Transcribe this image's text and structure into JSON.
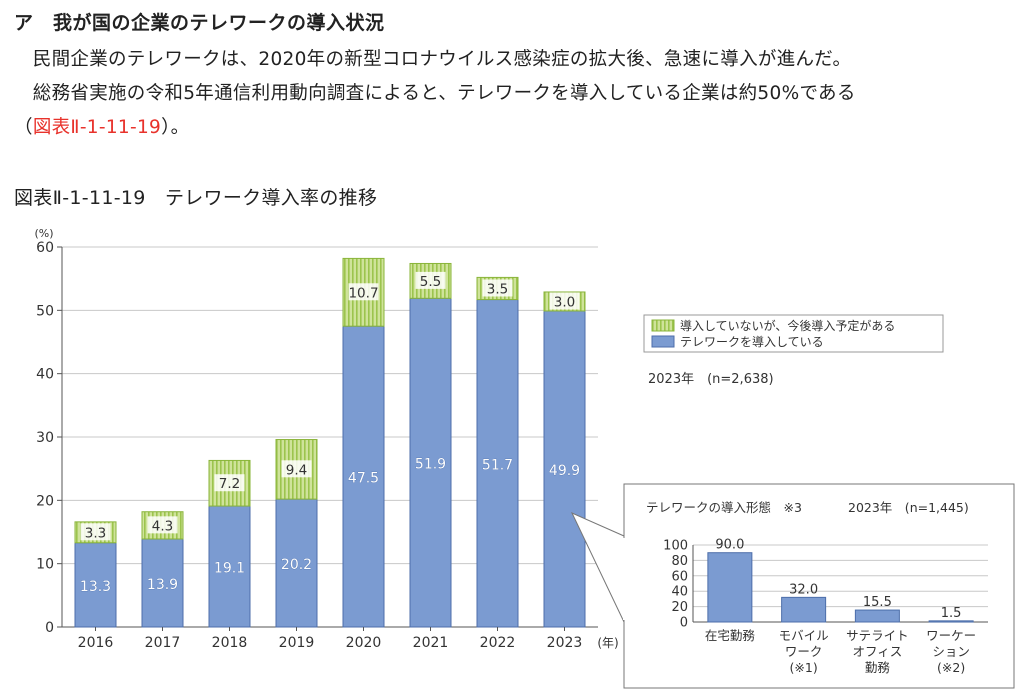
{
  "section": {
    "heading": "ア　我が国の企業のテレワークの導入状況"
  },
  "paragraphs": [
    "　民間企業のテレワークは、2020年の新型コロナウイルス感染症の拡大後、急速に導入が進んだ。",
    "　総務省実施の令和5年通信利用動向調査によると、テレワークを導入している企業は約50%である"
  ],
  "ref_line": {
    "open": "（",
    "ref": "図表Ⅱ-1-11-19",
    "close": "）。"
  },
  "figure": {
    "title": "図表Ⅱ-1-11-19　テレワーク導入率の推移"
  },
  "colors": {
    "blue": "#7b9bd1",
    "blue_edge": "#4c6eaa",
    "green": "#cfe39a",
    "green_stripe": "#9cc44d",
    "grid": "#c8c8c8",
    "axis": "#555555",
    "ref_red": "#e8322b"
  },
  "chart_data": [
    {
      "type": "bar",
      "stacked": true,
      "categories": [
        "2016",
        "2017",
        "2018",
        "2019",
        "2020",
        "2021",
        "2022",
        "2023"
      ],
      "x_unit": "(年)",
      "y_unit": "(%)",
      "ylim": [
        0,
        60
      ],
      "yticks": [
        0,
        10,
        20,
        30,
        40,
        50,
        60
      ],
      "grid": true,
      "series": [
        {
          "name": "テレワークを導入している",
          "values": [
            13.3,
            13.9,
            19.1,
            20.2,
            47.5,
            51.9,
            51.7,
            49.9
          ]
        },
        {
          "name": "導入していないが、今後導入予定がある",
          "values": [
            3.3,
            4.3,
            7.2,
            9.4,
            10.7,
            5.5,
            3.5,
            3.0
          ]
        }
      ],
      "legend": {
        "position": "right",
        "note": "2023年　(n=2,638)"
      }
    },
    {
      "type": "bar",
      "title": "テレワークの導入形態　※3",
      "note": "2023年　(n=1,445)",
      "categories": [
        [
          "在宅勤務"
        ],
        [
          "モバイル",
          "ワーク",
          "(※1)"
        ],
        [
          "サテライト",
          "オフィス",
          "勤務"
        ],
        [
          "ワーケー",
          "ション",
          "(※2)"
        ]
      ],
      "values": [
        90.0,
        32.0,
        15.5,
        1.5
      ],
      "ylim": [
        0,
        100
      ],
      "yticks": [
        0,
        20,
        40,
        60,
        80,
        100
      ],
      "grid": true
    }
  ]
}
